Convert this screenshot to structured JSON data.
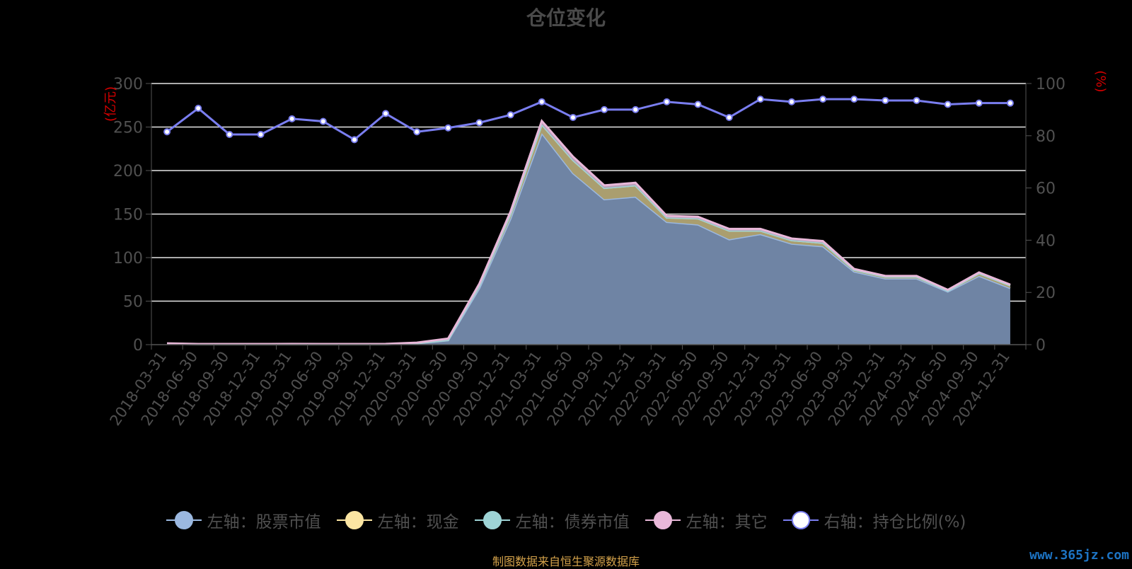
{
  "title": "仓位变化",
  "source_note": "制图数据来自恒生聚源数据库",
  "watermark": "www.365jz.com",
  "chart_data": {
    "type": "area",
    "categories": [
      "2018-03-31",
      "2018-06-30",
      "2018-09-30",
      "2018-12-31",
      "2019-03-31",
      "2019-06-30",
      "2019-09-30",
      "2019-12-31",
      "2020-03-31",
      "2020-06-30",
      "2020-09-30",
      "2020-12-31",
      "2021-03-31",
      "2021-06-30",
      "2021-09-30",
      "2021-12-31",
      "2022-03-31",
      "2022-06-30",
      "2022-09-30",
      "2022-12-31",
      "2023-03-31",
      "2023-06-30",
      "2023-09-30",
      "2023-12-31",
      "2024-03-31",
      "2024-06-30",
      "2024-09-30",
      "2024-12-31"
    ],
    "left_axis": {
      "label": "(亿元)",
      "ylim": [
        0,
        300
      ],
      "ticks": [
        0,
        50,
        100,
        150,
        200,
        250,
        300
      ]
    },
    "right_axis": {
      "label": "(%)",
      "ylim": [
        0,
        100
      ],
      "ticks": [
        0,
        20,
        40,
        60,
        80,
        100
      ]
    },
    "series": [
      {
        "name": "左轴：股票市值",
        "axis": "left",
        "kind": "stacked-area",
        "color": "#9bb8e0",
        "values": [
          1.0,
          0.5,
          0.5,
          0.5,
          0.5,
          0.5,
          0.5,
          0.5,
          1.5,
          5,
          65,
          145,
          243,
          197,
          167,
          170,
          141,
          138,
          121,
          127,
          116,
          113,
          84,
          76,
          76,
          61,
          79,
          65
        ]
      },
      {
        "name": "左轴：现金",
        "axis": "left",
        "kind": "stacked-area",
        "color": "#fbe5a2",
        "values": [
          0.1,
          0.1,
          0.1,
          0.1,
          0.1,
          0.1,
          0.1,
          0.1,
          0.2,
          0.5,
          3,
          5,
          10,
          15,
          13,
          13,
          5,
          7,
          10,
          4,
          4,
          4,
          2,
          2,
          2,
          1,
          3,
          3
        ]
      },
      {
        "name": "左轴：债券市值",
        "axis": "left",
        "kind": "stacked-area",
        "color": "#9ed4d6",
        "values": [
          0,
          0,
          0,
          0,
          0,
          0,
          0,
          0,
          0,
          0,
          0,
          0,
          0,
          0,
          0,
          0,
          0,
          0,
          0,
          0,
          0,
          0,
          0,
          0,
          0,
          0,
          0,
          0
        ]
      },
      {
        "name": "左轴：其它",
        "axis": "left",
        "kind": "stacked-area",
        "color": "#e9b8d9",
        "values": [
          0.4,
          0.2,
          0.2,
          0.2,
          0.3,
          0.2,
          0.2,
          0.3,
          0.6,
          1.5,
          2,
          3,
          4,
          4,
          3,
          3,
          2,
          2,
          2,
          2,
          2,
          2,
          1,
          1,
          1,
          1,
          1,
          1
        ]
      },
      {
        "name": "右轴：持仓比例(%)",
        "axis": "right",
        "kind": "line",
        "color": "#7a7ef0",
        "values": [
          81.5,
          90.5,
          80.5,
          80.5,
          86.5,
          85.5,
          78.5,
          88.5,
          81.5,
          83,
          85,
          88,
          93,
          87,
          90,
          90,
          93,
          92,
          87,
          94,
          93,
          94,
          94,
          93.5,
          93.5,
          92,
          92.5,
          92.5
        ]
      }
    ],
    "legend_position": "bottom",
    "grid": true
  }
}
